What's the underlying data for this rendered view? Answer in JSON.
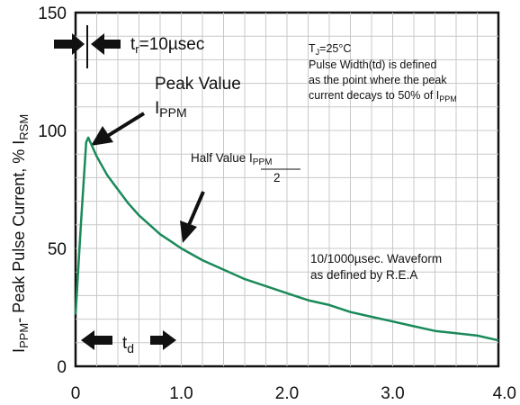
{
  "chart_data": {
    "type": "line",
    "title": "",
    "xlabel": "",
    "ylabel": {
      "main": "I",
      "sub": "PPM",
      "rest": "- Peak Pulse Current, % I",
      "sub2": "RSM"
    },
    "xlim": [
      0,
      4.0
    ],
    "ylim": [
      0,
      150
    ],
    "x_ticks": [
      "0",
      "1.0",
      "2.0",
      "3.0",
      "4.0"
    ],
    "y_ticks": [
      "0",
      "50",
      "100",
      "150"
    ],
    "x_tick_values": [
      0,
      1,
      2,
      3,
      4
    ],
    "y_tick_values": [
      0,
      50,
      100,
      150
    ],
    "grid": true,
    "line_color": "#1a8a5a",
    "series": [
      {
        "x": [
          0.0,
          0.05,
          0.1,
          0.12,
          0.2,
          0.3,
          0.4,
          0.5,
          0.6,
          0.7,
          0.8,
          0.9,
          1.0,
          1.2,
          1.4,
          1.6,
          1.8,
          2.0,
          2.2,
          2.4,
          2.6,
          2.8,
          3.0,
          3.2,
          3.4,
          3.6,
          3.8,
          4.0
        ],
        "y": [
          22,
          60,
          95,
          97,
          89,
          81,
          75,
          69,
          64,
          60,
          56,
          53,
          50,
          45,
          41,
          37,
          34,
          31,
          28,
          26,
          23,
          21,
          19,
          17,
          15,
          14,
          13,
          11
        ]
      }
    ],
    "annotations": {
      "rise_time": {
        "label": "t",
        "sub": "r",
        "rest": "=10µsec"
      },
      "conditions": {
        "line1_a": "T",
        "line1_sub": "J",
        "line1_b": "=25°C",
        "line2": "Pulse Width(td) is defined",
        "line3": "as the point where the peak",
        "line4_a": "current decays to 50% of I",
        "line4_sub": "PPM"
      },
      "peak_value": {
        "line1": "Peak Value",
        "label": "I",
        "sub": "PPM"
      },
      "half_value": {
        "text": "Half Value I",
        "sub": "PPM",
        "denominator": "2"
      },
      "waveform": {
        "line1": "10/1000µsec. Waveform",
        "line2": "as defined by R.E.A"
      },
      "td": {
        "label": "t",
        "sub": "d"
      }
    }
  }
}
